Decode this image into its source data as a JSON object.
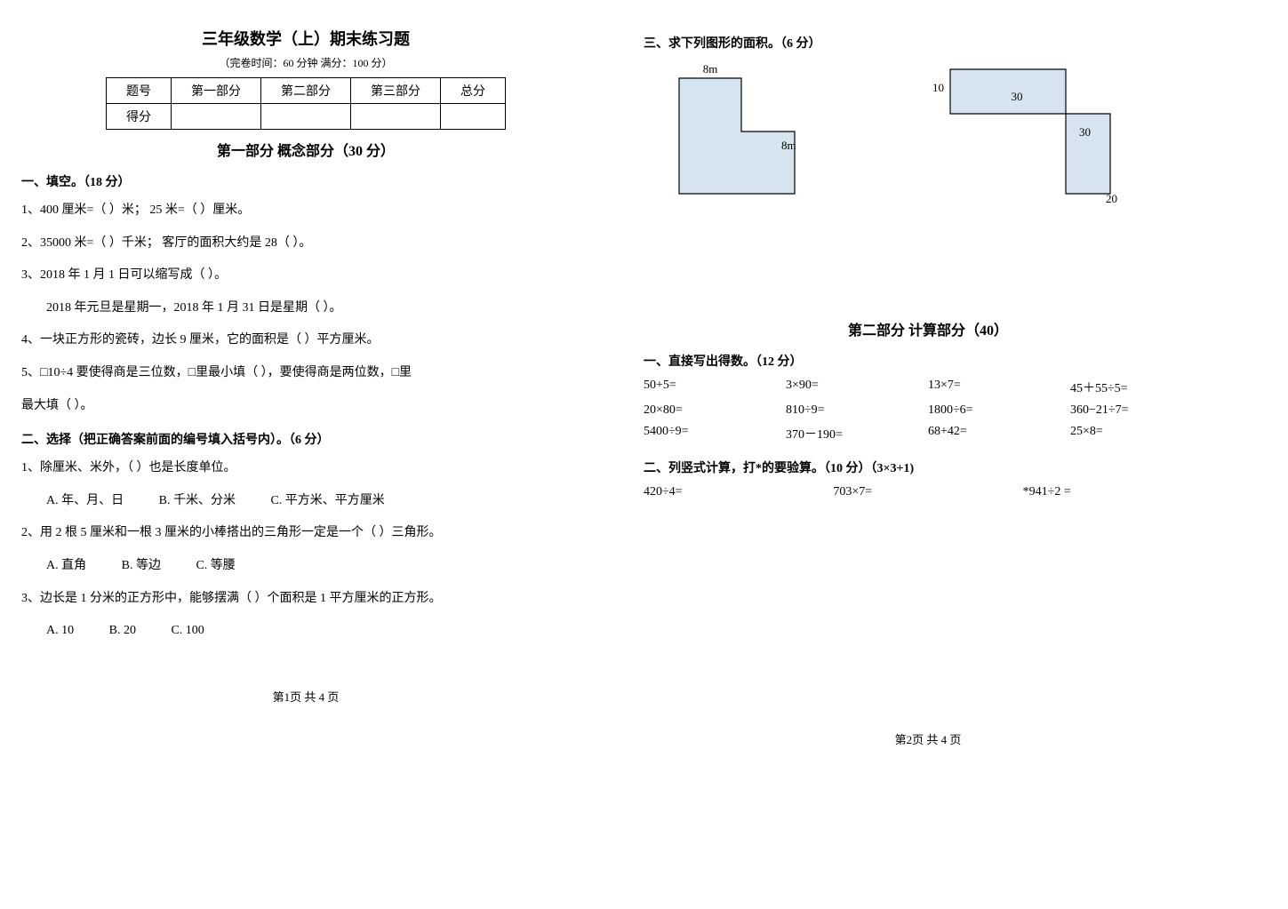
{
  "main_title": "三年级数学（上）期末练习题",
  "subtitle": "（完卷时间：60 分钟   满分：100 分）",
  "score_table": {
    "headers": [
      "题号",
      "第一部分",
      "第二部分",
      "第三部分",
      "总分"
    ],
    "row_label": "得分"
  },
  "part1_title": "第一部分   概念部分（30 分）",
  "p1_s1_heading": "一、填空。（18 分）",
  "p1_s1": {
    "q1": "1、400 厘米=（      ）米；      25 米=（      ）厘米。",
    "q2": "2、35000 米=（      ）千米；       客厅的面积大约是 28（        ）。",
    "q3a": "3、2018 年 1 月 1 日可以缩写成（                          ）。",
    "q3b": "2018 年元旦是星期一，2018 年 1 月 31 日是星期（        ）。",
    "q4": "4、一块正方形的瓷砖，边长 9 厘米，它的面积是（      ）平方厘米。",
    "q5a": "5、□10÷4 要使得商是三位数，□里最小填（          ），要使得商是两位数，□里",
    "q5b": "最大填（          ）。"
  },
  "p1_s2_heading": "二、选择（把正确答案前面的编号填入括号内）。（6 分）",
  "p1_s2": {
    "q1": "1、除厘米、米外，（      ）也是长度单位。",
    "q1a": "A. 年、月、日",
    "q1b": "B. 千米、分米",
    "q1c": "C. 平方米、平方厘米",
    "q2": "2、用 2 根 5 厘米和一根 3 厘米的小棒搭出的三角形一定是一个（      ）三角形。",
    "q2a": "A. 直角",
    "q2b": "B. 等边",
    "q2c": "C. 等腰",
    "q3": "3、边长是 1 分米的正方形中，能够摆满（      ）个面积是 1 平方厘米的正方形。",
    "q3a": "A. 10",
    "q3b": "B. 20",
    "q3c": "C. 100"
  },
  "p1_s3_heading": "三、求下列图形的面积。（6 分）",
  "figures": {
    "left_top": "8m",
    "left_right": "8m",
    "left_fill": "#d6e4f0",
    "left_w": 130,
    "left_h": 130,
    "left_cut_w": 60,
    "left_cut_h": 60,
    "right_l1": "10",
    "right_l2": "30",
    "right_l3": "30",
    "right_l4": "20",
    "right_fill": "#d6e4f0",
    "right_top_w": 130,
    "right_top_h": 50,
    "right_bot_w": 50,
    "right_bot_h": 90
  },
  "part2_title": "第二部分   计算部分（40）",
  "p2_s1_heading": "一、直接写出得数。（12 分）",
  "mental": {
    "r1c1": "50+5=",
    "r1c2": "3×90=",
    "r1c3": "13×7=",
    "r1c4": "45＋55÷5=",
    "r2c1": "20×80=",
    "r2c2": "810÷9=",
    "r2c3": "1800÷6=",
    "r2c4": "360−21÷7=",
    "r3c1": "5400÷9=",
    "r3c2": "370－190=",
    "r3c3": "68+42=",
    "r3c4": "25×8="
  },
  "p2_s2_heading": "二、列竖式计算，打*的要验算。（10 分）（3×3+1)",
  "vertical": {
    "c1": "420÷4=",
    "c2": "703×7=",
    "c3": "*941÷2  ="
  },
  "footer_left": "第1页   共 4 页",
  "footer_right": "第2页   共 4 页",
  "colors": {
    "text": "#000000",
    "bg": "#ffffff",
    "shape_fill": "#d6e4f0"
  }
}
